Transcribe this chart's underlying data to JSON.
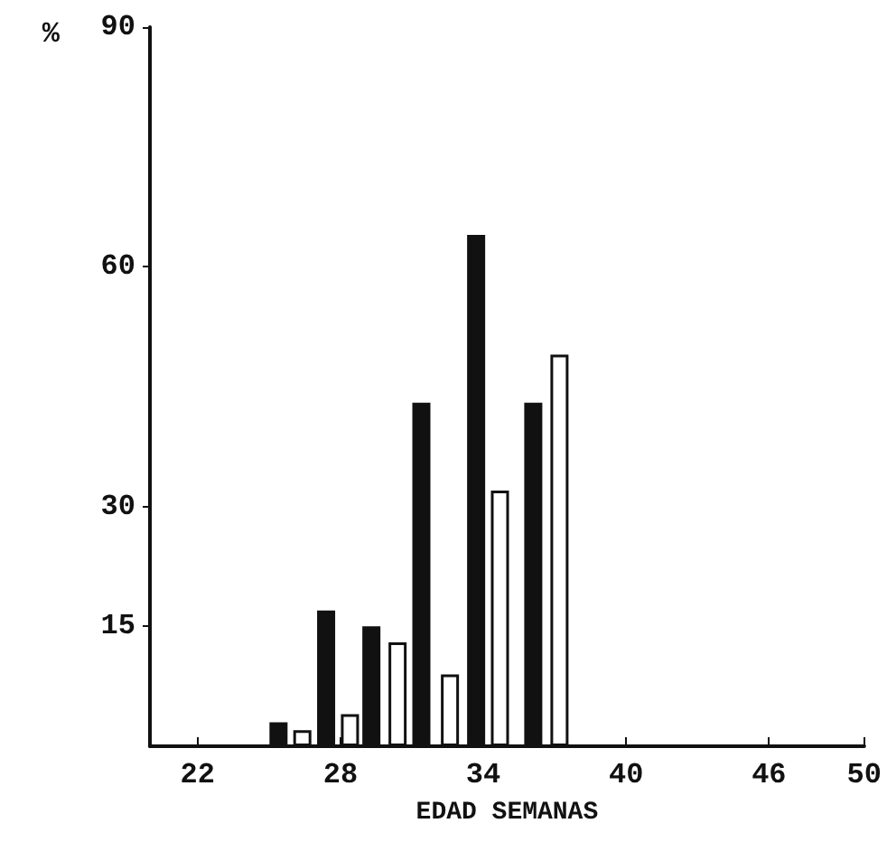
{
  "chart_data": {
    "type": "bar",
    "xlabel": "EDAD SEMANAS",
    "ylabel": "%",
    "series": [
      {
        "color": "#111111",
        "x": [
          25.4,
          27.4,
          29.3,
          31.4,
          33.7,
          36.1
        ],
        "values": [
          3,
          17,
          15,
          43,
          64,
          43
        ]
      },
      {
        "color": "#ffffff",
        "x": [
          26.4,
          28.4,
          30.4,
          32.6,
          34.7,
          37.2
        ],
        "values": [
          2,
          4,
          13,
          9,
          32,
          49
        ]
      }
    ],
    "xlim": [
      20,
      50
    ],
    "xticks": [
      22,
      28,
      34,
      40,
      46,
      50
    ],
    "ylim": [
      0,
      90
    ],
    "yticks": [
      15,
      30,
      60,
      90
    ]
  }
}
